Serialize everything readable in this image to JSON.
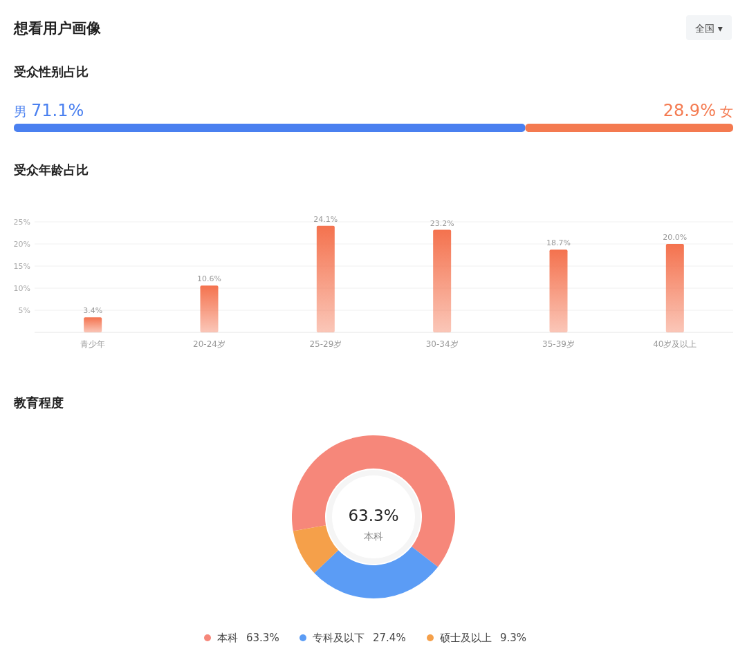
{
  "chart_data": [
    {
      "type": "other",
      "title": "想看用户画像",
      "annotations": [
        "全国 ▾"
      ]
    },
    {
      "type": "bar",
      "title": "受众性别占比",
      "orientation": "horizontal",
      "stacked": true,
      "categories": [
        null
      ],
      "xlim": [
        0,
        100
      ],
      "series": [
        {
          "name": "男",
          "color": "#4a80f0",
          "values": [
            71.1
          ],
          "value_labels": [
            "71.1%"
          ]
        },
        {
          "name": "女",
          "color": "#f47a50",
          "values": [
            28.9
          ],
          "value_labels": [
            "28.9%"
          ]
        }
      ]
    },
    {
      "type": "bar",
      "title": "受众年龄占比",
      "categories": [
        "青少年",
        "20-24岁",
        "25-29岁",
        "30-34岁",
        "35-39岁",
        "40岁及以上"
      ],
      "values": [
        3.4,
        10.6,
        24.1,
        23.2,
        18.7,
        20.0
      ],
      "value_labels": [
        "3.4%",
        "10.6%",
        "24.1%",
        "23.2%",
        "18.7%",
        "20.0%"
      ],
      "color": "#f4724e",
      "ylim": [
        0,
        25
      ],
      "yticks": [
        {
          "value": 5,
          "label": "5%"
        },
        {
          "value": 10,
          "label": "10%"
        },
        {
          "value": 15,
          "label": "15%"
        },
        {
          "value": 20,
          "label": "20%"
        },
        {
          "value": 25,
          "label": "25%"
        }
      ],
      "grid": "y"
    },
    {
      "type": "donut",
      "title": "教育程度",
      "categories": [
        "本科",
        "专科及以下",
        "硕士及以上"
      ],
      "values": [
        63.3,
        27.4,
        9.3
      ],
      "value_labels": [
        "63.3%",
        "27.4%",
        "9.3%"
      ],
      "colors": [
        "#f6877a",
        "#5b9cf5",
        "#f5a04a"
      ],
      "legend": "bottom"
    }
  ]
}
